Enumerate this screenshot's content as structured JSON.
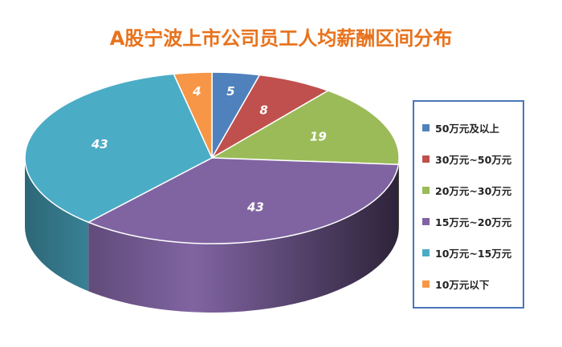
{
  "chart_data": {
    "type": "pie",
    "title": "A股宁波上市公司员工人均薪酬区间分布",
    "slices": [
      {
        "label": "50万元及以上",
        "value": 5,
        "color": "#4f81bd"
      },
      {
        "label": "30万元~50万元",
        "value": 8,
        "color": "#c0504d"
      },
      {
        "label": "20万元~30万元",
        "value": 19,
        "color": "#9bbb59"
      },
      {
        "label": "15万元~20万元",
        "value": 43,
        "color": "#8064a2"
      },
      {
        "label": "10万元~15万元",
        "value": 43,
        "color": "#4bacc6"
      },
      {
        "label": "10万元以下",
        "value": 4,
        "color": "#f79646"
      }
    ],
    "legend_position": "right",
    "three_d": true
  }
}
